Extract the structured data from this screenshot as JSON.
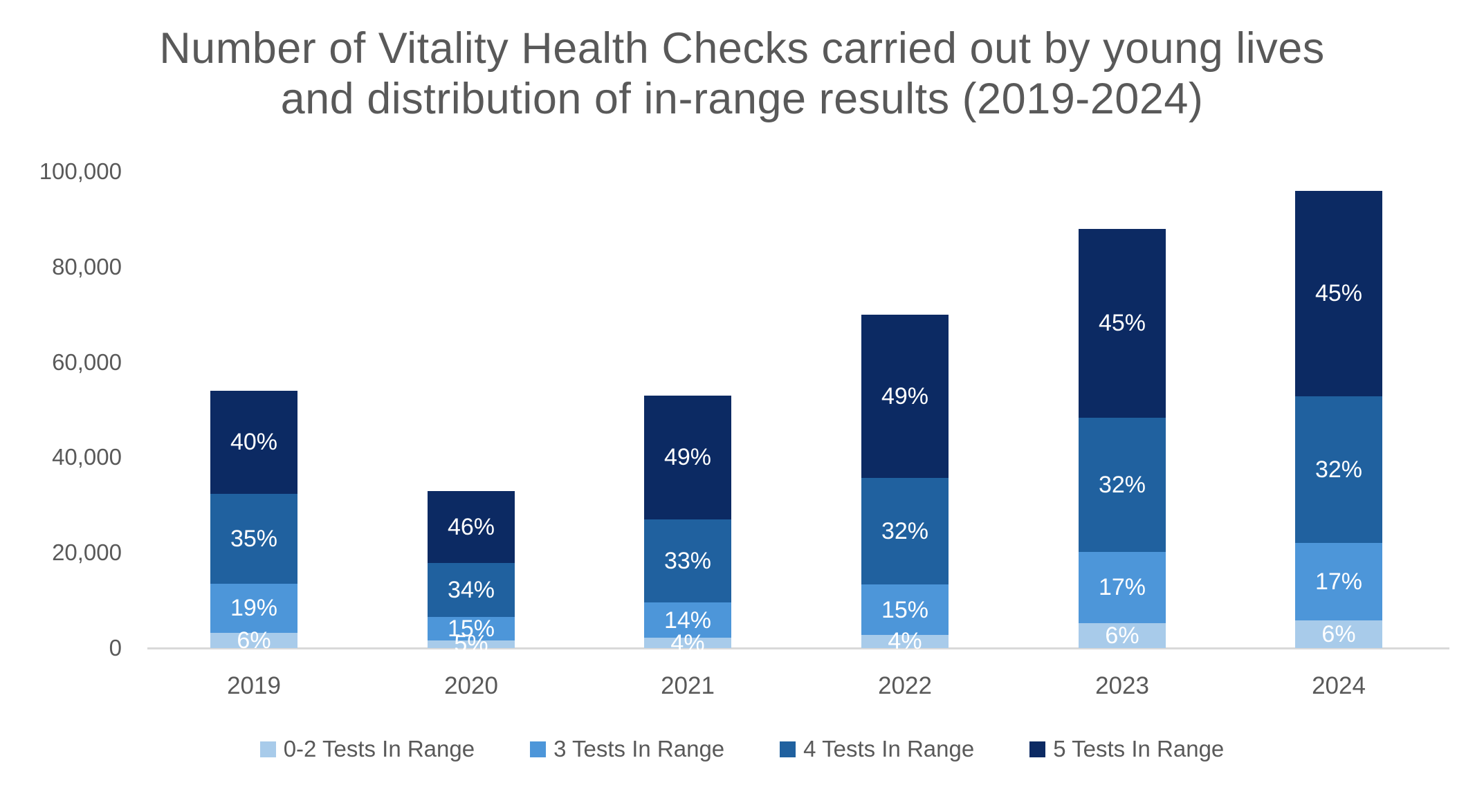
{
  "title": {
    "line1": "Number of Vitality Health Checks carried out by young lives",
    "line2": "and distribution of in-range results (2019-2024)"
  },
  "y_axis": {
    "tick_labels": [
      "100,000",
      "80,000",
      "60,000",
      "40,000",
      "20,000",
      "0"
    ]
  },
  "chart_data": {
    "type": "bar",
    "stacked": true,
    "title": "Number of Vitality Health Checks carried out by young lives and distribution of in-range results (2019-2024)",
    "categories": [
      "2019",
      "2020",
      "2021",
      "2022",
      "2023",
      "2024"
    ],
    "totals": [
      54000,
      33000,
      53000,
      70000,
      88000,
      96000
    ],
    "series": [
      {
        "name": "0-2 Tests In Range",
        "color": "#A8CBEA",
        "pct": [
          6,
          5,
          4,
          4,
          6,
          6
        ]
      },
      {
        "name": "3 Tests In Range",
        "color": "#4D96D9",
        "pct": [
          19,
          15,
          14,
          15,
          17,
          17
        ]
      },
      {
        "name": "4 Tests In Range",
        "color": "#20619F",
        "pct": [
          35,
          34,
          33,
          32,
          32,
          32
        ]
      },
      {
        "name": "5 Tests In Range",
        "color": "#0C2A63",
        "pct": [
          40,
          46,
          49,
          49,
          45,
          45
        ]
      }
    ],
    "value_label_format": "percent",
    "ylim": [
      0,
      100000
    ],
    "y_tick_step": 20000,
    "grid": false,
    "legend_position": "bottom"
  },
  "colors": {
    "text": "#595959",
    "axis_line": "#D9D9D9",
    "background": "#FFFFFF",
    "bar_label_text": "#FFFFFF"
  }
}
